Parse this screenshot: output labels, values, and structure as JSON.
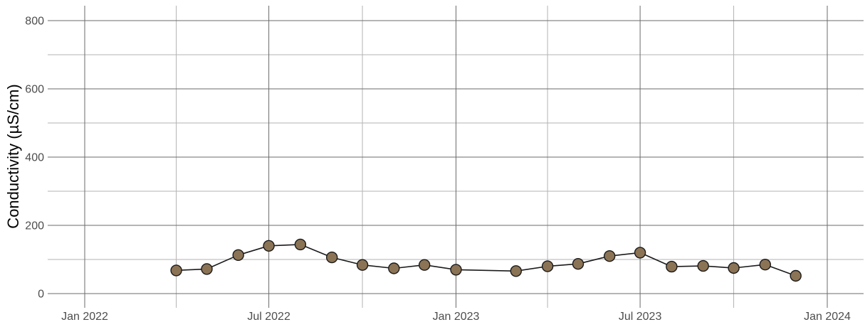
{
  "chart_data": {
    "type": "line",
    "ylabel": "Conductivity (µS/cm)",
    "xlabel": "",
    "title": "",
    "ylim": [
      0,
      800
    ],
    "xlim": [
      "2021-11-01",
      "2024-02-01"
    ],
    "grid": true,
    "y_ticks": [
      {
        "value": 0,
        "label": "0"
      },
      {
        "value": 200,
        "label": "200"
      },
      {
        "value": 400,
        "label": "400"
      },
      {
        "value": 600,
        "label": "600"
      },
      {
        "value": 800,
        "label": "800"
      }
    ],
    "y_minor_ticks": [
      100,
      300,
      500,
      700
    ],
    "x_ticks": [
      {
        "date": "2022-01-01",
        "label": "Jan 2022"
      },
      {
        "date": "2022-07-01",
        "label": "Jul 2022"
      },
      {
        "date": "2023-01-01",
        "label": "Jan 2023"
      },
      {
        "date": "2023-07-01",
        "label": "Jul 2023"
      },
      {
        "date": "2024-01-01",
        "label": "Jan 2024"
      }
    ],
    "x_minor_ticks": [
      "2022-04-01",
      "2022-10-01",
      "2023-04-01",
      "2023-10-01"
    ],
    "series": [
      {
        "marker_color": "#8b7355",
        "line_color": "#1a1a1a",
        "points": [
          {
            "x": "2022-04-01",
            "y": 68
          },
          {
            "x": "2022-05-01",
            "y": 72
          },
          {
            "x": "2022-06-01",
            "y": 113
          },
          {
            "x": "2022-07-01",
            "y": 140
          },
          {
            "x": "2022-08-01",
            "y": 144
          },
          {
            "x": "2022-09-01",
            "y": 106
          },
          {
            "x": "2022-10-01",
            "y": 84
          },
          {
            "x": "2022-11-01",
            "y": 74
          },
          {
            "x": "2022-12-01",
            "y": 84
          },
          {
            "x": "2023-01-01",
            "y": 70
          },
          {
            "x": "2023-03-01",
            "y": 66
          },
          {
            "x": "2023-04-01",
            "y": 80
          },
          {
            "x": "2023-05-01",
            "y": 87
          },
          {
            "x": "2023-06-01",
            "y": 110
          },
          {
            "x": "2023-07-01",
            "y": 120
          },
          {
            "x": "2023-08-01",
            "y": 79
          },
          {
            "x": "2023-09-01",
            "y": 81
          },
          {
            "x": "2023-10-01",
            "y": 75
          },
          {
            "x": "2023-11-01",
            "y": 85
          },
          {
            "x": "2023-12-01",
            "y": 52
          }
        ]
      }
    ]
  }
}
